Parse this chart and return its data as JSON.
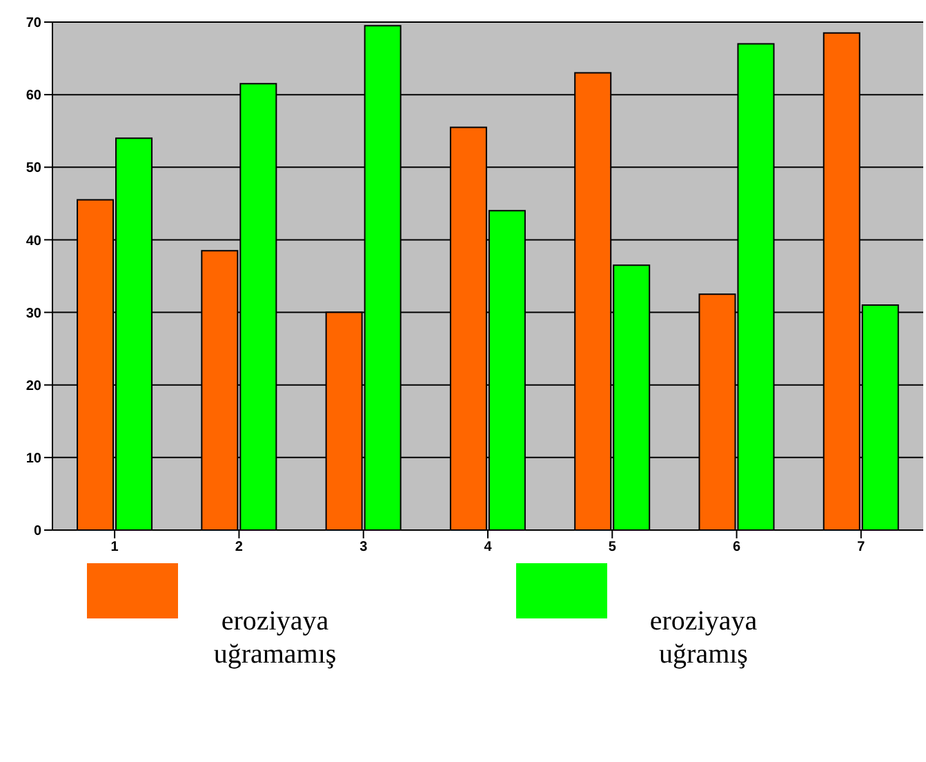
{
  "chart_data": {
    "type": "bar",
    "categories": [
      "1",
      "2",
      "3",
      "4",
      "5",
      "6",
      "7"
    ],
    "series": [
      {
        "name": "eroziyaya uğramamış",
        "color": "#ff6600",
        "values": [
          45.5,
          38.5,
          30,
          55.5,
          63,
          32.5,
          68.5
        ]
      },
      {
        "name": "eroziyaya uğramış",
        "color": "#00ff00",
        "values": [
          54,
          61.5,
          69.5,
          44,
          36.5,
          67,
          31
        ]
      }
    ],
    "ylim": [
      0,
      70
    ],
    "yticks": [
      0,
      10,
      20,
      30,
      40,
      50,
      60,
      70
    ],
    "grid": "y",
    "legend": "bottom"
  }
}
